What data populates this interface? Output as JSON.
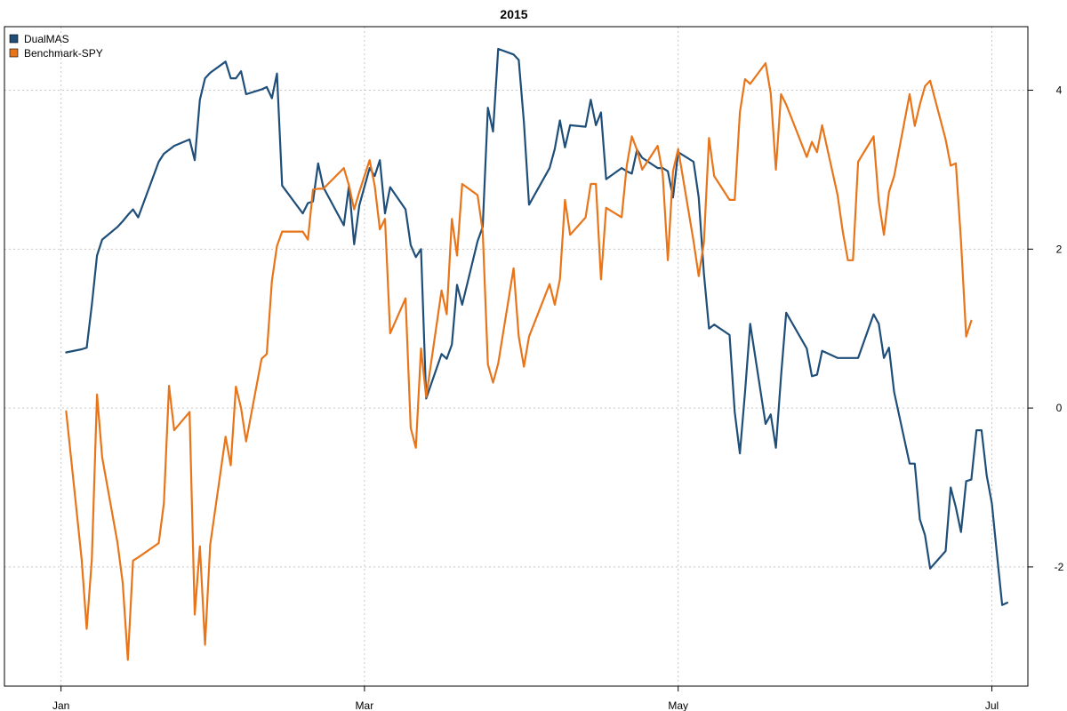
{
  "chart_data": {
    "type": "line",
    "title": "2015",
    "xlabel": "",
    "ylabel": "",
    "x_ticks": [
      {
        "label": "Jan",
        "date": "2015-01-01"
      },
      {
        "label": "Mar",
        "date": "2015-03-01"
      },
      {
        "label": "May",
        "date": "2015-05-01"
      },
      {
        "label": "Jul",
        "date": "2015-07-01"
      }
    ],
    "y_ticks": [
      -2,
      0,
      2,
      4
    ],
    "xlim": [
      "2014-12-21",
      "2015-07-08"
    ],
    "ylim": [
      -3.5,
      4.8
    ],
    "y_axis_side": "right",
    "grid": true,
    "legend_position": "top-left",
    "series": [
      {
        "name": "DualMAS",
        "color": "#1f4e79",
        "points": [
          [
            "2015-01-02",
            0.7
          ],
          [
            "2015-01-05",
            0.74
          ],
          [
            "2015-01-06",
            0.76
          ],
          [
            "2015-01-07",
            1.3
          ],
          [
            "2015-01-08",
            1.92
          ],
          [
            "2015-01-09",
            2.12
          ],
          [
            "2015-01-12",
            2.28
          ],
          [
            "2015-01-13",
            2.35
          ],
          [
            "2015-01-14",
            2.43
          ],
          [
            "2015-01-15",
            2.5
          ],
          [
            "2015-01-16",
            2.4
          ],
          [
            "2015-01-20",
            3.1
          ],
          [
            "2015-01-21",
            3.2
          ],
          [
            "2015-01-22",
            3.25
          ],
          [
            "2015-01-23",
            3.3
          ],
          [
            "2015-01-26",
            3.38
          ],
          [
            "2015-01-27",
            3.12
          ],
          [
            "2015-01-28",
            3.88
          ],
          [
            "2015-01-29",
            4.15
          ],
          [
            "2015-01-30",
            4.22
          ],
          [
            "2015-02-02",
            4.36
          ],
          [
            "2015-02-03",
            4.15
          ],
          [
            "2015-02-04",
            4.15
          ],
          [
            "2015-02-05",
            4.24
          ],
          [
            "2015-02-06",
            3.95
          ],
          [
            "2015-02-09",
            4.01
          ],
          [
            "2015-02-10",
            4.04
          ],
          [
            "2015-02-11",
            3.9
          ],
          [
            "2015-02-12",
            4.21
          ],
          [
            "2015-02-13",
            2.8
          ],
          [
            "2015-02-17",
            2.45
          ],
          [
            "2015-02-18",
            2.58
          ],
          [
            "2015-02-19",
            2.6
          ],
          [
            "2015-02-20",
            3.08
          ],
          [
            "2015-02-21",
            2.78
          ],
          [
            "2015-02-25",
            2.3
          ],
          [
            "2015-02-26",
            2.8
          ],
          [
            "2015-02-27",
            2.06
          ],
          [
            "2015-02-28",
            2.55
          ],
          [
            "2015-03-02",
            3.02
          ],
          [
            "2015-03-03",
            2.92
          ],
          [
            "2015-03-04",
            3.12
          ],
          [
            "2015-03-05",
            2.45
          ],
          [
            "2015-03-06",
            2.78
          ],
          [
            "2015-03-09",
            2.5
          ],
          [
            "2015-03-10",
            2.05
          ],
          [
            "2015-03-11",
            1.9
          ],
          [
            "2015-03-12",
            2.0
          ],
          [
            "2015-03-13",
            0.12
          ],
          [
            "2015-03-16",
            0.68
          ],
          [
            "2015-03-17",
            0.62
          ],
          [
            "2015-03-18",
            0.8
          ],
          [
            "2015-03-19",
            1.55
          ],
          [
            "2015-03-20",
            1.3
          ],
          [
            "2015-03-23",
            2.1
          ],
          [
            "2015-03-24",
            2.28
          ],
          [
            "2015-03-25",
            3.78
          ],
          [
            "2015-03-26",
            3.48
          ],
          [
            "2015-03-27",
            4.52
          ],
          [
            "2015-03-30",
            4.45
          ],
          [
            "2015-03-31",
            4.38
          ],
          [
            "2015-04-01",
            3.6
          ],
          [
            "2015-04-02",
            2.56
          ],
          [
            "2015-04-06",
            3.02
          ],
          [
            "2015-04-07",
            3.26
          ],
          [
            "2015-04-08",
            3.62
          ],
          [
            "2015-04-09",
            3.28
          ],
          [
            "2015-04-10",
            3.56
          ],
          [
            "2015-04-13",
            3.54
          ],
          [
            "2015-04-14",
            3.88
          ],
          [
            "2015-04-15",
            3.56
          ],
          [
            "2015-04-16",
            3.72
          ],
          [
            "2015-04-17",
            2.88
          ],
          [
            "2015-04-20",
            3.02
          ],
          [
            "2015-04-21",
            2.98
          ],
          [
            "2015-04-22",
            2.95
          ],
          [
            "2015-04-23",
            3.25
          ],
          [
            "2015-04-24",
            3.15
          ],
          [
            "2015-04-27",
            3.02
          ],
          [
            "2015-04-28",
            3.02
          ],
          [
            "2015-04-29",
            2.98
          ],
          [
            "2015-04-30",
            2.65
          ],
          [
            "2015-05-01",
            3.22
          ],
          [
            "2015-05-04",
            3.1
          ],
          [
            "2015-05-05",
            2.65
          ],
          [
            "2015-05-06",
            1.7
          ],
          [
            "2015-05-07",
            1.0
          ],
          [
            "2015-05-08",
            1.05
          ],
          [
            "2015-05-11",
            0.92
          ],
          [
            "2015-05-12",
            -0.05
          ],
          [
            "2015-05-13",
            -0.57
          ],
          [
            "2015-05-14",
            0.2
          ],
          [
            "2015-05-15",
            1.06
          ],
          [
            "2015-05-18",
            -0.2
          ],
          [
            "2015-05-19",
            -0.08
          ],
          [
            "2015-05-20",
            -0.5
          ],
          [
            "2015-05-21",
            0.4
          ],
          [
            "2015-05-22",
            1.2
          ],
          [
            "2015-05-26",
            0.75
          ],
          [
            "2015-05-27",
            0.4
          ],
          [
            "2015-05-28",
            0.42
          ],
          [
            "2015-05-29",
            0.72
          ],
          [
            "2015-06-01",
            0.63
          ],
          [
            "2015-06-02",
            0.63
          ],
          [
            "2015-06-03",
            0.63
          ],
          [
            "2015-06-04",
            0.63
          ],
          [
            "2015-06-05",
            0.63
          ],
          [
            "2015-06-08",
            1.18
          ],
          [
            "2015-06-09",
            1.06
          ],
          [
            "2015-06-10",
            0.63
          ],
          [
            "2015-06-11",
            0.76
          ],
          [
            "2015-06-12",
            0.2
          ],
          [
            "2015-06-15",
            -0.7
          ],
          [
            "2015-06-16",
            -0.7
          ],
          [
            "2015-06-17",
            -1.4
          ],
          [
            "2015-06-18",
            -1.6
          ],
          [
            "2015-06-19",
            -2.02
          ],
          [
            "2015-06-22",
            -1.8
          ],
          [
            "2015-06-23",
            -1.0
          ],
          [
            "2015-06-24",
            -1.25
          ],
          [
            "2015-06-25",
            -1.56
          ],
          [
            "2015-06-26",
            -0.92
          ],
          [
            "2015-06-27",
            -0.9
          ],
          [
            "2015-06-28",
            -0.28
          ],
          [
            "2015-06-29",
            -0.28
          ],
          [
            "2015-06-30",
            -0.85
          ],
          [
            "2015-07-01",
            -1.2
          ],
          [
            "2015-07-02",
            -1.85
          ],
          [
            "2015-07-03",
            -2.48
          ],
          [
            "2015-07-04",
            -2.45
          ]
        ]
      },
      {
        "name": "Benchmark-SPY",
        "color": "#e8751a",
        "points": [
          [
            "2015-01-02",
            -0.04
          ],
          [
            "2015-01-05",
            -1.9
          ],
          [
            "2015-01-06",
            -2.78
          ],
          [
            "2015-01-07",
            -1.9
          ],
          [
            "2015-01-08",
            0.17
          ],
          [
            "2015-01-09",
            -0.62
          ],
          [
            "2015-01-12",
            -1.7
          ],
          [
            "2015-01-13",
            -2.2
          ],
          [
            "2015-01-14",
            -3.17
          ],
          [
            "2015-01-15",
            -1.92
          ],
          [
            "2015-01-16",
            -1.88
          ],
          [
            "2015-01-20",
            -1.7
          ],
          [
            "2015-01-21",
            -1.2
          ],
          [
            "2015-01-22",
            0.28
          ],
          [
            "2015-01-23",
            -0.28
          ],
          [
            "2015-01-26",
            -0.05
          ],
          [
            "2015-01-27",
            -2.6
          ],
          [
            "2015-01-28",
            -1.74
          ],
          [
            "2015-01-29",
            -2.98
          ],
          [
            "2015-01-30",
            -1.72
          ],
          [
            "2015-02-02",
            -0.36
          ],
          [
            "2015-02-03",
            -0.72
          ],
          [
            "2015-02-04",
            0.27
          ],
          [
            "2015-02-05",
            0.0
          ],
          [
            "2015-02-06",
            -0.42
          ],
          [
            "2015-02-09",
            0.62
          ],
          [
            "2015-02-10",
            0.68
          ],
          [
            "2015-02-11",
            1.6
          ],
          [
            "2015-02-12",
            2.04
          ],
          [
            "2015-02-13",
            2.22
          ],
          [
            "2015-02-17",
            2.22
          ],
          [
            "2015-02-18",
            2.12
          ],
          [
            "2015-02-19",
            2.75
          ],
          [
            "2015-02-20",
            2.76
          ],
          [
            "2015-02-21",
            2.76
          ],
          [
            "2015-02-25",
            3.02
          ],
          [
            "2015-02-26",
            2.8
          ],
          [
            "2015-02-27",
            2.5
          ],
          [
            "2015-02-28",
            2.72
          ],
          [
            "2015-03-02",
            3.12
          ],
          [
            "2015-03-03",
            2.8
          ],
          [
            "2015-03-04",
            2.25
          ],
          [
            "2015-03-05",
            2.38
          ],
          [
            "2015-03-06",
            0.94
          ],
          [
            "2015-03-09",
            1.38
          ],
          [
            "2015-03-10",
            -0.25
          ],
          [
            "2015-03-11",
            -0.5
          ],
          [
            "2015-03-12",
            0.75
          ],
          [
            "2015-03-13",
            0.14
          ],
          [
            "2015-03-16",
            1.48
          ],
          [
            "2015-03-17",
            1.18
          ],
          [
            "2015-03-18",
            2.38
          ],
          [
            "2015-03-19",
            1.92
          ],
          [
            "2015-03-20",
            2.82
          ],
          [
            "2015-03-23",
            2.68
          ],
          [
            "2015-03-24",
            2.22
          ],
          [
            "2015-03-25",
            0.55
          ],
          [
            "2015-03-26",
            0.32
          ],
          [
            "2015-03-27",
            0.56
          ],
          [
            "2015-03-30",
            1.76
          ],
          [
            "2015-03-31",
            0.9
          ],
          [
            "2015-04-01",
            0.52
          ],
          [
            "2015-04-02",
            0.9
          ],
          [
            "2015-04-06",
            1.56
          ],
          [
            "2015-04-07",
            1.3
          ],
          [
            "2015-04-08",
            1.62
          ],
          [
            "2015-04-09",
            2.62
          ],
          [
            "2015-04-10",
            2.18
          ],
          [
            "2015-04-13",
            2.4
          ],
          [
            "2015-04-14",
            2.82
          ],
          [
            "2015-04-15",
            2.82
          ],
          [
            "2015-04-16",
            1.62
          ],
          [
            "2015-04-17",
            2.52
          ],
          [
            "2015-04-20",
            2.4
          ],
          [
            "2015-04-21",
            3.05
          ],
          [
            "2015-04-22",
            3.42
          ],
          [
            "2015-04-23",
            3.25
          ],
          [
            "2015-04-24",
            3.0
          ],
          [
            "2015-04-27",
            3.3
          ],
          [
            "2015-04-28",
            2.95
          ],
          [
            "2015-04-29",
            1.86
          ],
          [
            "2015-04-30",
            2.98
          ],
          [
            "2015-05-01",
            3.26
          ],
          [
            "2015-05-04",
            2.1
          ],
          [
            "2015-05-05",
            1.66
          ],
          [
            "2015-05-06",
            2.08
          ],
          [
            "2015-05-07",
            3.4
          ],
          [
            "2015-05-08",
            2.92
          ],
          [
            "2015-05-11",
            2.62
          ],
          [
            "2015-05-12",
            2.62
          ],
          [
            "2015-05-13",
            3.72
          ],
          [
            "2015-05-14",
            4.14
          ],
          [
            "2015-05-15",
            4.08
          ],
          [
            "2015-05-18",
            4.34
          ],
          [
            "2015-05-19",
            3.96
          ],
          [
            "2015-05-20",
            3.0
          ],
          [
            "2015-05-21",
            3.95
          ],
          [
            "2015-05-22",
            3.82
          ],
          [
            "2015-05-26",
            3.16
          ],
          [
            "2015-05-27",
            3.35
          ],
          [
            "2015-05-28",
            3.22
          ],
          [
            "2015-05-29",
            3.56
          ],
          [
            "2015-06-01",
            2.68
          ],
          [
            "2015-06-02",
            2.22
          ],
          [
            "2015-06-03",
            1.86
          ],
          [
            "2015-06-04",
            1.86
          ],
          [
            "2015-06-05",
            3.1
          ],
          [
            "2015-06-08",
            3.42
          ],
          [
            "2015-06-09",
            2.6
          ],
          [
            "2015-06-10",
            2.18
          ],
          [
            "2015-06-11",
            2.72
          ],
          [
            "2015-06-12",
            2.92
          ],
          [
            "2015-06-15",
            3.95
          ],
          [
            "2015-06-16",
            3.55
          ],
          [
            "2015-06-17",
            3.82
          ],
          [
            "2015-06-18",
            4.05
          ],
          [
            "2015-06-19",
            4.12
          ],
          [
            "2015-06-22",
            3.38
          ],
          [
            "2015-06-23",
            3.05
          ],
          [
            "2015-06-24",
            3.08
          ],
          [
            "2015-06-25",
            2.1
          ],
          [
            "2015-06-26",
            0.9
          ],
          [
            "2015-06-27",
            1.1
          ]
        ]
      }
    ]
  }
}
